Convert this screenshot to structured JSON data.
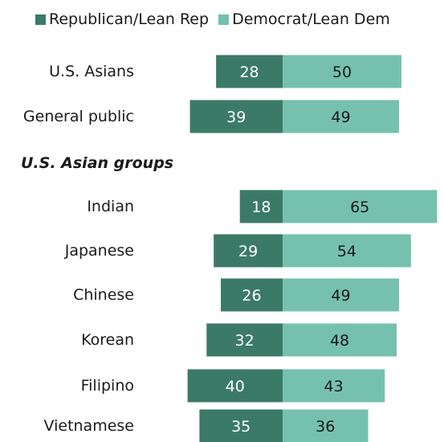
{
  "legend": {
    "rep_label": "Republican/Lean Rep",
    "dem_label": "Democrat/Lean Dem"
  },
  "colors": {
    "rep": "#3c7a68",
    "dem": "#76c1ad"
  },
  "section_title": "U.S. Asian groups",
  "chart_data": {
    "type": "bar",
    "orientation": "horizontal-diverging",
    "title": "",
    "series": [
      {
        "name": "Republican/Lean Rep",
        "values": [
          28,
          39,
          18,
          29,
          26,
          32,
          40,
          35
        ]
      },
      {
        "name": "Democrat/Lean Dem",
        "values": [
          50,
          49,
          65,
          54,
          49,
          48,
          43,
          36
        ]
      }
    ],
    "categories": [
      "U.S. Asians",
      "General public",
      "Indian",
      "Japanese",
      "Chinese",
      "Korean",
      "Filipino",
      "Vietnamese"
    ],
    "groups": [
      {
        "title": "",
        "categories": [
          "U.S. Asians",
          "General public"
        ]
      },
      {
        "title": "U.S. Asian groups",
        "categories": [
          "Indian",
          "Japanese",
          "Chinese",
          "Korean",
          "Filipino",
          "Vietnamese"
        ]
      }
    ]
  }
}
